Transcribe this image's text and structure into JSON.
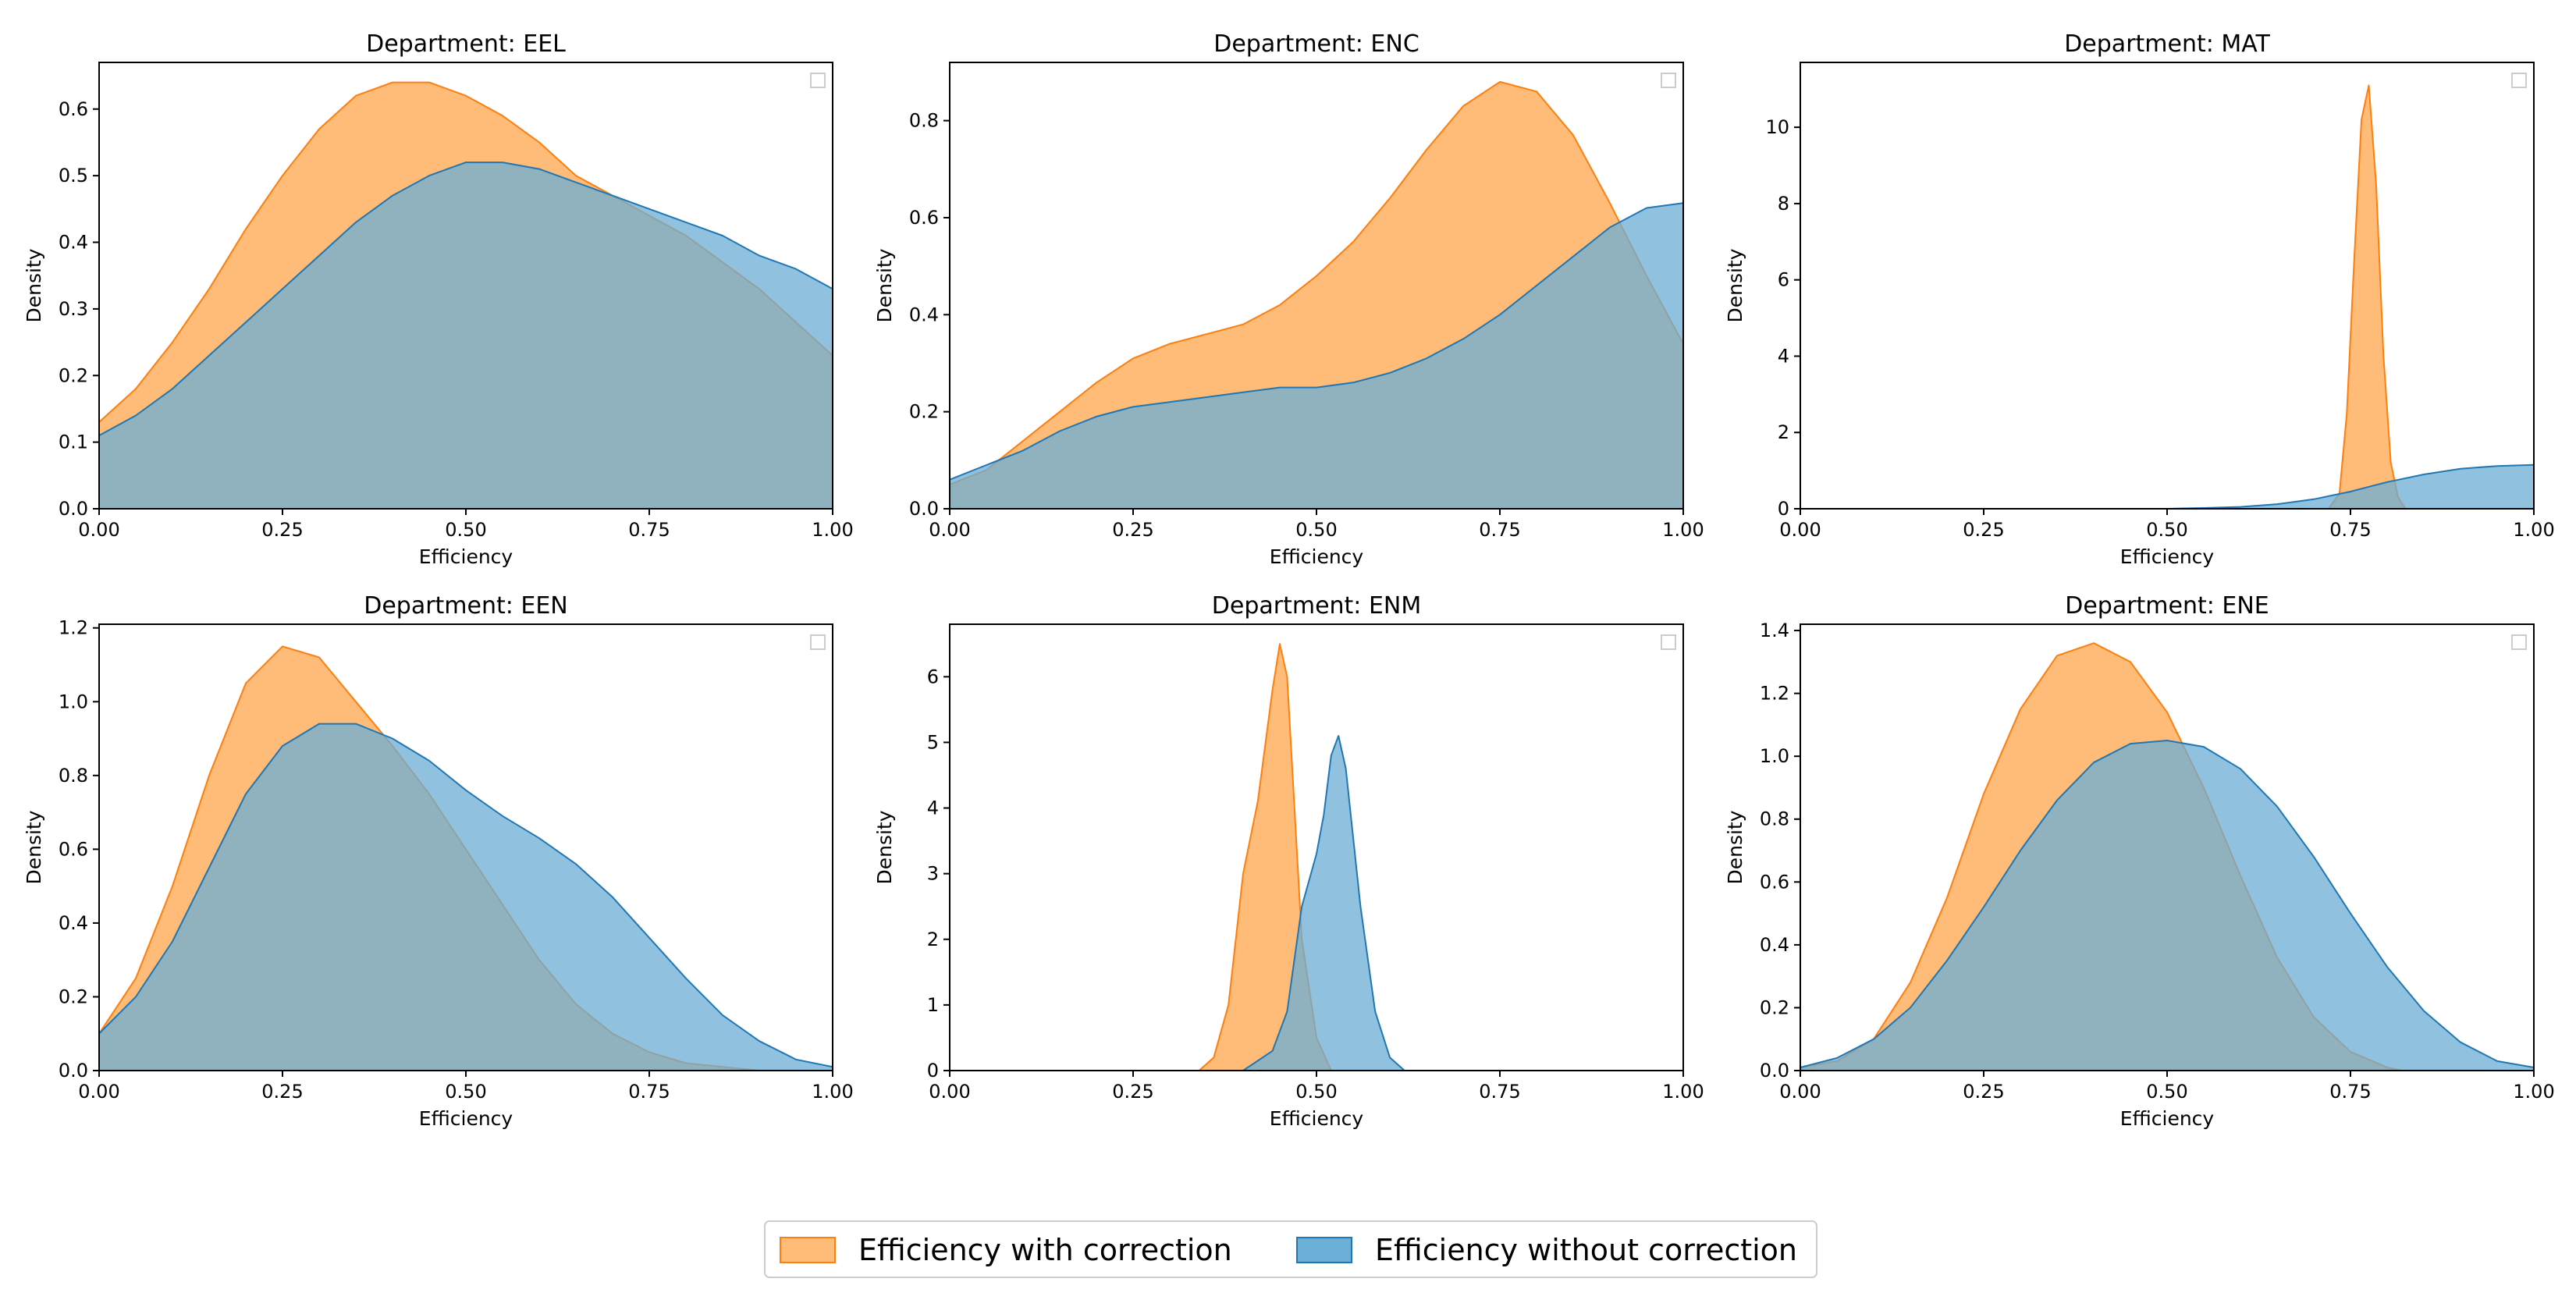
{
  "colors": {
    "with_correction_fill": "#ffbb78",
    "with_correction_line": "#ff7f0e",
    "without_correction_fill": "#6baed6",
    "without_correction_line": "#1f77b4"
  },
  "legend": {
    "with_correction_label": "Efficiency with correction",
    "without_correction_label": "Efficiency without correction"
  },
  "chart_data": [
    {
      "type": "area",
      "title": "Department: EEL",
      "xlabel": "Efficiency",
      "ylabel": "Density",
      "xlim": [
        0,
        1
      ],
      "ylim": [
        0,
        0.67
      ],
      "xticks": [
        0,
        0.25,
        0.5,
        0.75,
        1
      ],
      "xtick_labels": [
        "0.00",
        "0.25",
        "0.50",
        "0.75",
        "1.00"
      ],
      "yticks": [
        0,
        0.1,
        0.2,
        0.3,
        0.4,
        0.5,
        0.6
      ],
      "ytick_labels": [
        "0.0",
        "0.1",
        "0.2",
        "0.3",
        "0.4",
        "0.5",
        "0.6"
      ],
      "series": [
        {
          "name": "Efficiency with correction",
          "x": [
            0,
            0.05,
            0.1,
            0.15,
            0.2,
            0.25,
            0.3,
            0.35,
            0.4,
            0.45,
            0.5,
            0.55,
            0.6,
            0.65,
            0.7,
            0.75,
            0.8,
            0.85,
            0.9,
            0.95,
            1
          ],
          "y": [
            0.13,
            0.18,
            0.25,
            0.33,
            0.42,
            0.5,
            0.57,
            0.62,
            0.64,
            0.64,
            0.62,
            0.59,
            0.55,
            0.5,
            0.47,
            0.44,
            0.41,
            0.37,
            0.33,
            0.28,
            0.23
          ]
        },
        {
          "name": "Efficiency without correction",
          "x": [
            0,
            0.05,
            0.1,
            0.15,
            0.2,
            0.25,
            0.3,
            0.35,
            0.4,
            0.45,
            0.5,
            0.55,
            0.6,
            0.65,
            0.7,
            0.75,
            0.8,
            0.85,
            0.9,
            0.95,
            1
          ],
          "y": [
            0.11,
            0.14,
            0.18,
            0.23,
            0.28,
            0.33,
            0.38,
            0.43,
            0.47,
            0.5,
            0.52,
            0.52,
            0.51,
            0.49,
            0.47,
            0.45,
            0.43,
            0.41,
            0.38,
            0.36,
            0.33
          ]
        }
      ]
    },
    {
      "type": "area",
      "title": "Department: ENC",
      "xlabel": "Efficiency",
      "ylabel": "Density",
      "xlim": [
        0,
        1
      ],
      "ylim": [
        0,
        0.92
      ],
      "xticks": [
        0,
        0.25,
        0.5,
        0.75,
        1
      ],
      "xtick_labels": [
        "0.00",
        "0.25",
        "0.50",
        "0.75",
        "1.00"
      ],
      "yticks": [
        0,
        0.2,
        0.4,
        0.6,
        0.8
      ],
      "ytick_labels": [
        "0.0",
        "0.2",
        "0.4",
        "0.6",
        "0.8"
      ],
      "series": [
        {
          "name": "Efficiency with correction",
          "x": [
            0,
            0.05,
            0.1,
            0.15,
            0.2,
            0.25,
            0.3,
            0.35,
            0.4,
            0.45,
            0.5,
            0.55,
            0.6,
            0.65,
            0.7,
            0.75,
            0.8,
            0.85,
            0.9,
            0.95,
            1
          ],
          "y": [
            0.05,
            0.08,
            0.14,
            0.2,
            0.26,
            0.31,
            0.34,
            0.36,
            0.38,
            0.42,
            0.48,
            0.55,
            0.64,
            0.74,
            0.83,
            0.88,
            0.86,
            0.77,
            0.63,
            0.48,
            0.34
          ]
        },
        {
          "name": "Efficiency without correction",
          "x": [
            0,
            0.05,
            0.1,
            0.15,
            0.2,
            0.25,
            0.3,
            0.35,
            0.4,
            0.45,
            0.5,
            0.55,
            0.6,
            0.65,
            0.7,
            0.75,
            0.8,
            0.85,
            0.9,
            0.95,
            1
          ],
          "y": [
            0.06,
            0.09,
            0.12,
            0.16,
            0.19,
            0.21,
            0.22,
            0.23,
            0.24,
            0.25,
            0.25,
            0.26,
            0.28,
            0.31,
            0.35,
            0.4,
            0.46,
            0.52,
            0.58,
            0.62,
            0.63
          ]
        }
      ]
    },
    {
      "type": "area",
      "title": "Department: MAT",
      "xlabel": "Efficiency",
      "ylabel": "Density",
      "xlim": [
        0,
        1
      ],
      "ylim": [
        0,
        11.7
      ],
      "xticks": [
        0,
        0.25,
        0.5,
        0.75,
        1
      ],
      "xtick_labels": [
        "0.00",
        "0.25",
        "0.50",
        "0.75",
        "1.00"
      ],
      "yticks": [
        0,
        2,
        4,
        6,
        8,
        10
      ],
      "ytick_labels": [
        "0",
        "2",
        "4",
        "6",
        "8",
        "10"
      ],
      "series": [
        {
          "name": "Efficiency with correction",
          "x": [
            0.72,
            0.735,
            0.745,
            0.755,
            0.765,
            0.775,
            0.785,
            0.795,
            0.805,
            0.815,
            0.825
          ],
          "y": [
            0,
            0.4,
            2.5,
            6.5,
            10.2,
            11.1,
            8.5,
            4,
            1.2,
            0.3,
            0
          ]
        },
        {
          "name": "Efficiency without correction",
          "x": [
            0.5,
            0.55,
            0.6,
            0.65,
            0.7,
            0.75,
            0.8,
            0.85,
            0.9,
            0.95,
            1
          ],
          "y": [
            0,
            0.02,
            0.05,
            0.12,
            0.25,
            0.45,
            0.7,
            0.9,
            1.05,
            1.12,
            1.15
          ]
        }
      ]
    },
    {
      "type": "area",
      "title": "Department: EEN",
      "xlabel": "Efficiency",
      "ylabel": "Density",
      "xlim": [
        0,
        1
      ],
      "ylim": [
        0,
        1.21
      ],
      "xticks": [
        0,
        0.25,
        0.5,
        0.75,
        1
      ],
      "xtick_labels": [
        "0.00",
        "0.25",
        "0.50",
        "0.75",
        "1.00"
      ],
      "yticks": [
        0,
        0.2,
        0.4,
        0.6,
        0.8,
        1,
        1.2
      ],
      "ytick_labels": [
        "0.0",
        "0.2",
        "0.4",
        "0.6",
        "0.8",
        "1.0",
        "1.2"
      ],
      "series": [
        {
          "name": "Efficiency with correction",
          "x": [
            0,
            0.05,
            0.1,
            0.15,
            0.2,
            0.25,
            0.3,
            0.35,
            0.4,
            0.45,
            0.5,
            0.55,
            0.6,
            0.65,
            0.7,
            0.75,
            0.8,
            0.85,
            0.9
          ],
          "y": [
            0.1,
            0.25,
            0.5,
            0.8,
            1.05,
            1.15,
            1.12,
            1.0,
            0.88,
            0.75,
            0.6,
            0.45,
            0.3,
            0.18,
            0.1,
            0.05,
            0.02,
            0.01,
            0
          ]
        },
        {
          "name": "Efficiency without correction",
          "x": [
            0,
            0.05,
            0.1,
            0.15,
            0.2,
            0.25,
            0.3,
            0.35,
            0.4,
            0.45,
            0.5,
            0.55,
            0.6,
            0.65,
            0.7,
            0.75,
            0.8,
            0.85,
            0.9,
            0.95,
            1
          ],
          "y": [
            0.1,
            0.2,
            0.35,
            0.55,
            0.75,
            0.88,
            0.94,
            0.94,
            0.9,
            0.84,
            0.76,
            0.69,
            0.63,
            0.56,
            0.47,
            0.36,
            0.25,
            0.15,
            0.08,
            0.03,
            0.01
          ]
        }
      ]
    },
    {
      "type": "area",
      "title": "Department: ENM",
      "xlabel": "Efficiency",
      "ylabel": "Density",
      "xlim": [
        0,
        1
      ],
      "ylim": [
        0,
        6.8
      ],
      "xticks": [
        0,
        0.25,
        0.5,
        0.75,
        1
      ],
      "xtick_labels": [
        "0.00",
        "0.25",
        "0.50",
        "0.75",
        "1.00"
      ],
      "yticks": [
        0,
        1,
        2,
        3,
        4,
        5,
        6
      ],
      "ytick_labels": [
        "0",
        "1",
        "2",
        "3",
        "4",
        "5",
        "6"
      ],
      "series": [
        {
          "name": "Efficiency with correction",
          "x": [
            0.34,
            0.36,
            0.38,
            0.4,
            0.42,
            0.44,
            0.45,
            0.46,
            0.47,
            0.48,
            0.5,
            0.52
          ],
          "y": [
            0,
            0.2,
            1.0,
            3.0,
            4.1,
            5.8,
            6.5,
            6.0,
            4.0,
            2.0,
            0.5,
            0
          ]
        },
        {
          "name": "Efficiency without correction",
          "x": [
            0.4,
            0.44,
            0.46,
            0.48,
            0.5,
            0.51,
            0.52,
            0.53,
            0.54,
            0.56,
            0.58,
            0.6,
            0.62
          ],
          "y": [
            0,
            0.3,
            0.9,
            2.5,
            3.3,
            3.9,
            4.8,
            5.1,
            4.6,
            2.5,
            0.9,
            0.2,
            0
          ]
        }
      ]
    },
    {
      "type": "area",
      "title": "Department: ENE",
      "xlabel": "Efficiency",
      "ylabel": "Density",
      "xlim": [
        0,
        1
      ],
      "ylim": [
        0,
        1.42
      ],
      "xticks": [
        0,
        0.25,
        0.5,
        0.75,
        1
      ],
      "xtick_labels": [
        "0.00",
        "0.25",
        "0.50",
        "0.75",
        "1.00"
      ],
      "yticks": [
        0,
        0.2,
        0.4,
        0.6,
        0.8,
        1,
        1.2,
        1.4
      ],
      "ytick_labels": [
        "0.0",
        "0.2",
        "0.4",
        "0.6",
        "0.8",
        "1.0",
        "1.2",
        "1.4"
      ],
      "series": [
        {
          "name": "Efficiency with correction",
          "x": [
            0,
            0.05,
            0.1,
            0.15,
            0.2,
            0.25,
            0.3,
            0.35,
            0.4,
            0.45,
            0.5,
            0.55,
            0.6,
            0.65,
            0.7,
            0.75,
            0.8,
            0.82
          ],
          "y": [
            0.01,
            0.03,
            0.1,
            0.28,
            0.55,
            0.88,
            1.15,
            1.32,
            1.36,
            1.3,
            1.14,
            0.9,
            0.62,
            0.36,
            0.17,
            0.06,
            0.01,
            0
          ]
        },
        {
          "name": "Efficiency without correction",
          "x": [
            0,
            0.05,
            0.1,
            0.15,
            0.2,
            0.25,
            0.3,
            0.35,
            0.4,
            0.45,
            0.5,
            0.55,
            0.6,
            0.65,
            0.7,
            0.75,
            0.8,
            0.85,
            0.9,
            0.95,
            1
          ],
          "y": [
            0.01,
            0.04,
            0.1,
            0.2,
            0.35,
            0.52,
            0.7,
            0.86,
            0.98,
            1.04,
            1.05,
            1.03,
            0.96,
            0.84,
            0.68,
            0.5,
            0.33,
            0.19,
            0.09,
            0.03,
            0.01
          ]
        }
      ]
    }
  ]
}
